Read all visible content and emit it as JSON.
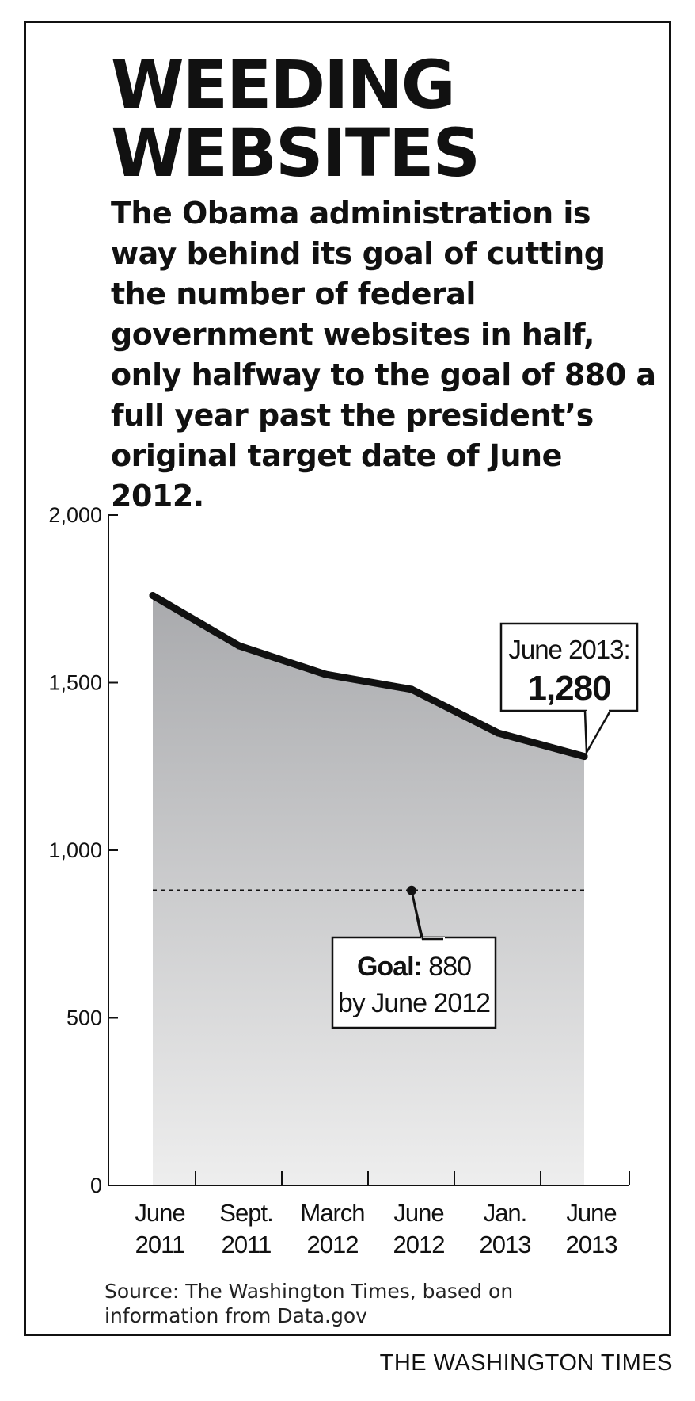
{
  "header": {
    "title_line1": "WEEDING",
    "title_line2": "WEBSITES",
    "subtitle": "The Obama administration is way behind its goal of cutting the number of federal government websites in half, only halfway to the goal of 880 a full year past the president’s original target date of June 2012."
  },
  "chart_data": {
    "type": "area",
    "categories": [
      [
        "June",
        "2011"
      ],
      [
        "Sept.",
        "2011"
      ],
      [
        "March",
        "2012"
      ],
      [
        "June",
        "2012"
      ],
      [
        "Jan.",
        "2013"
      ],
      [
        "June",
        "2013"
      ]
    ],
    "x_slots": [
      0,
      1,
      2,
      3,
      4,
      5
    ],
    "x": [
      "June 2011",
      "Sept. 2011",
      "March 2012",
      "June 2012",
      "Jan. 2013",
      "June 2013"
    ],
    "values": [
      1760,
      1610,
      1525,
      1480,
      1350,
      1280
    ],
    "ylim": [
      0,
      2000
    ],
    "yticks": [
      0,
      500,
      1000,
      1500,
      2000
    ],
    "ytick_labels": [
      "0",
      "500",
      "1,000",
      "1,500",
      "2,000"
    ],
    "goal": {
      "value": 880,
      "x_slot": 3
    },
    "goal_label": {
      "bold": "Goal:",
      "value": " 880",
      "line2": "by June 2012"
    },
    "end_label": {
      "line1": "June 2013:",
      "line2": "1,280"
    },
    "colors": {
      "line": "#111111",
      "fill_top": "#a9aaad",
      "fill_bottom": "#eeeeee",
      "axis": "#111111"
    }
  },
  "footer": {
    "source_line1": "Source: The Washington Times, based on",
    "source_line2": "information from Data.gov",
    "brand": "THE WASHINGTON TIMES"
  }
}
